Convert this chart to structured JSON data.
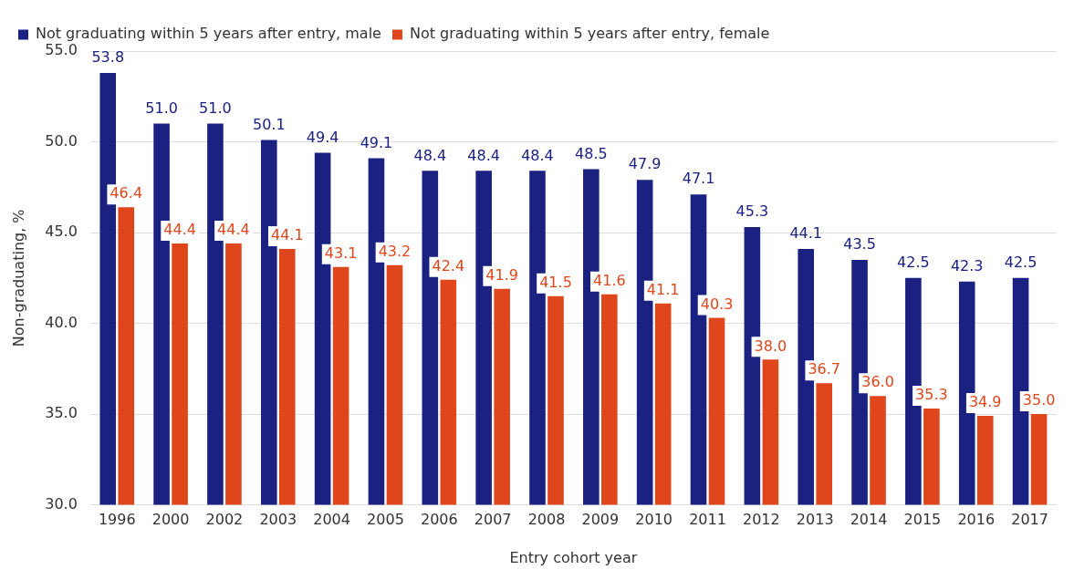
{
  "chart_data": {
    "type": "bar",
    "xlabel": "Entry cohort year",
    "ylabel": "Non-graduating, %",
    "categories": [
      "1996",
      "2000",
      "2002",
      "2003",
      "2004",
      "2005",
      "2006",
      "2007",
      "2008",
      "2009",
      "2010",
      "2011",
      "2012",
      "2013",
      "2014",
      "2015",
      "2016",
      "2017"
    ],
    "series": [
      {
        "name": "Not graduating within 5 years after entry, male",
        "color": "#1b2180",
        "values": [
          53.8,
          51.0,
          51.0,
          50.1,
          49.4,
          49.1,
          48.4,
          48.4,
          48.4,
          48.5,
          47.9,
          47.1,
          45.3,
          44.1,
          43.5,
          42.5,
          42.3,
          42.5
        ],
        "value_labels": [
          "53.8",
          "51.0",
          "51.0",
          "50.1",
          "49.4",
          "49.1",
          "48.4",
          "48.4",
          "48.4",
          "48.5",
          "47.9",
          "47.1",
          "45.3",
          "44.1",
          "43.5",
          "42.5",
          "42.3",
          "42.5"
        ]
      },
      {
        "name": "Not graduating within 5 years after entry, female",
        "color": "#e0461c",
        "values": [
          46.4,
          44.4,
          44.4,
          44.1,
          43.1,
          43.2,
          42.4,
          41.9,
          41.5,
          41.6,
          41.1,
          40.3,
          38.0,
          36.7,
          36.0,
          35.3,
          34.9,
          35.0
        ],
        "value_labels": [
          "46.4",
          "44.4",
          "44.4",
          "44.1",
          "43.1",
          "43.2",
          "42.4",
          "41.9",
          "41.5",
          "41.6",
          "41.1",
          "40.3",
          "38.0",
          "36.7",
          "36.0",
          "35.3",
          "34.9",
          "35.0"
        ]
      }
    ],
    "ylim": [
      30,
      55
    ],
    "yticks": [
      {
        "value": 30,
        "label": "30.0"
      },
      {
        "value": 35,
        "label": "35.0"
      },
      {
        "value": 40,
        "label": "40.0"
      },
      {
        "value": 45,
        "label": "45.0"
      },
      {
        "value": 50,
        "label": "50.0"
      },
      {
        "value": 55,
        "label": "55.0"
      }
    ],
    "grid": "y",
    "legend": "top left"
  }
}
